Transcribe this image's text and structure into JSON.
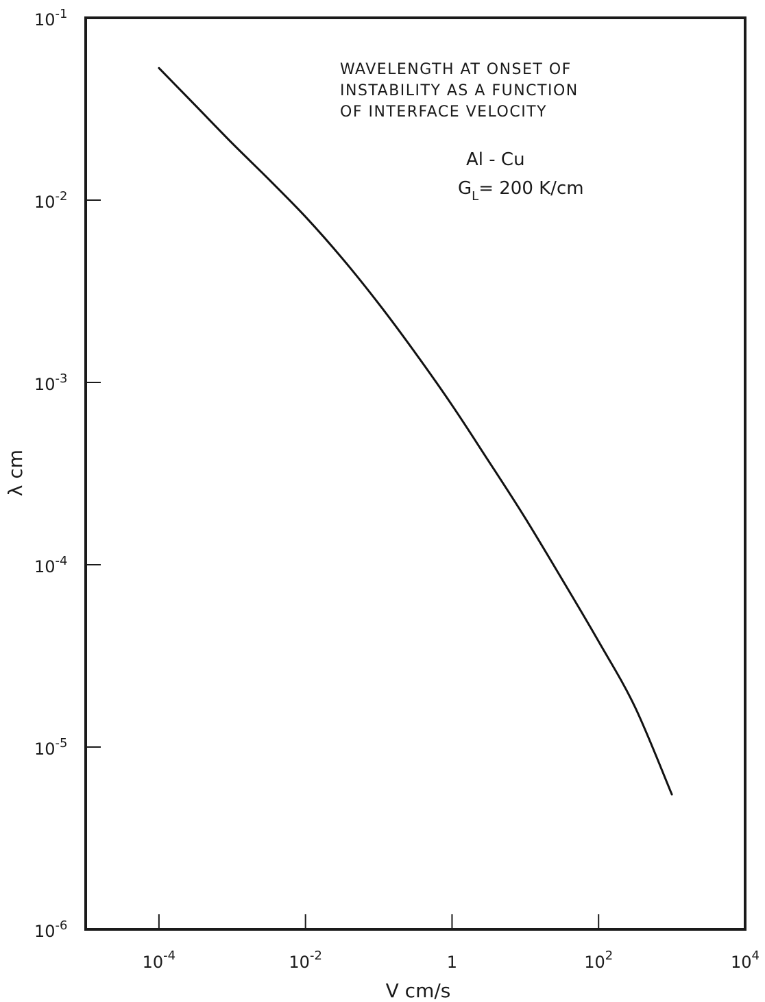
{
  "chart_data": {
    "type": "line",
    "xscale": "log",
    "yscale": "log",
    "xlim": [
      1e-05,
      10000
    ],
    "ylim": [
      1e-06,
      0.1
    ],
    "xlabel": "V cm/s",
    "ylabel": "λ cm",
    "xticks": [
      {
        "value": 0.0001,
        "base": "10",
        "exp": "-4"
      },
      {
        "value": 0.01,
        "base": "10",
        "exp": "-2"
      },
      {
        "value": 1,
        "base": "1",
        "exp": ""
      },
      {
        "value": 100,
        "base": "10",
        "exp": "2"
      },
      {
        "value": 10000,
        "base": "10",
        "exp": "4"
      }
    ],
    "yticks": [
      {
        "value": 0.1,
        "base": "10",
        "exp": "-1"
      },
      {
        "value": 0.01,
        "base": "10",
        "exp": "-2"
      },
      {
        "value": 0.001,
        "base": "10",
        "exp": "-3"
      },
      {
        "value": 0.0001,
        "base": "10",
        "exp": "-4"
      },
      {
        "value": 1e-05,
        "base": "10",
        "exp": "-5"
      },
      {
        "value": 1e-06,
        "base": "10",
        "exp": "-6"
      }
    ],
    "annotation": {
      "lines": [
        "WAVELENGTH AT ONSET OF",
        "INSTABILITY AS A FUNCTION",
        "OF INTERFACE VELOCITY"
      ],
      "alloy": "Al - Cu",
      "gradient_symbol": "G",
      "gradient_subscript": "L",
      "gradient_value": "= 200 K/cm"
    },
    "series": [
      {
        "x": [
          0.0001,
          0.000316,
          0.001,
          0.00316,
          0.01,
          0.0316,
          0.1,
          0.316,
          1,
          3.16,
          10,
          31.6,
          100,
          316,
          1000
        ],
        "y": [
          0.053,
          0.033,
          0.0205,
          0.013,
          0.0081,
          0.0048,
          0.0027,
          0.00145,
          0.00075,
          0.00037,
          0.00018,
          8.35e-05,
          3.8e-05,
          1.65e-05,
          5.5e-06
        ]
      }
    ],
    "grid": false,
    "line_color": "#111111"
  }
}
